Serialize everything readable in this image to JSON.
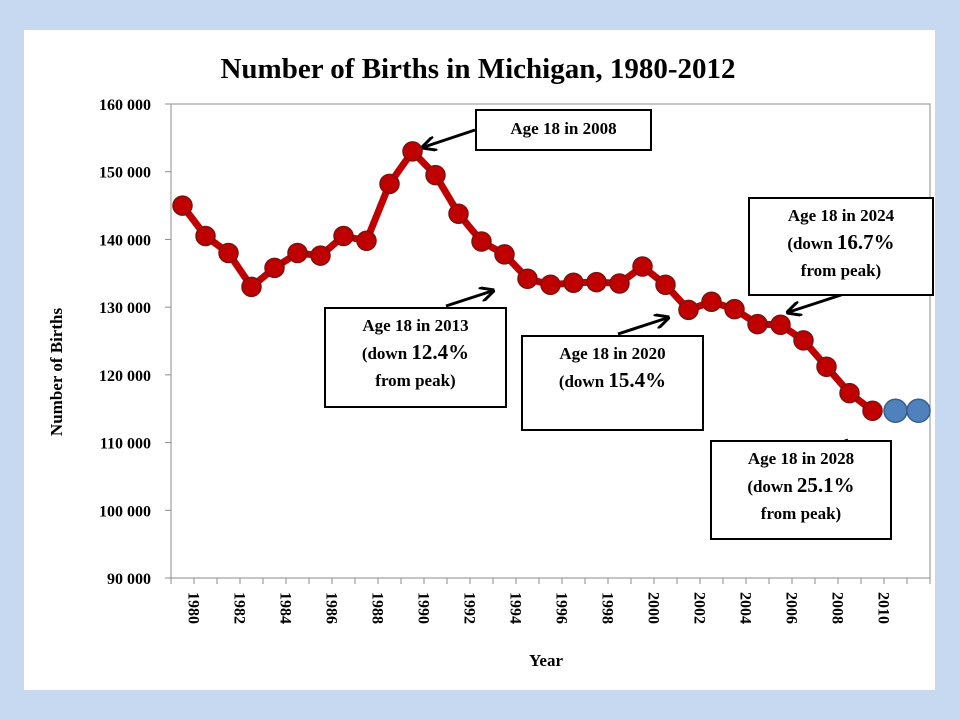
{
  "chart_data": {
    "type": "line",
    "title": "Number of Births in Michigan, 1980-2012",
    "xlabel": "Year",
    "ylabel": "Number of Births",
    "ylim": [
      90000,
      160000
    ],
    "yticks": [
      90000,
      100000,
      110000,
      120000,
      130000,
      140000,
      150000,
      160000
    ],
    "ytick_labels": [
      "90 000",
      "100 000",
      "110 000",
      "120 000",
      "130 000",
      "140 000",
      "150 000",
      "160 000"
    ],
    "xlim": [
      1980,
      2012
    ],
    "xtick_labels": [
      "1980",
      "1982",
      "1984",
      "1986",
      "1988",
      "1990",
      "1992",
      "1994",
      "1996",
      "1998",
      "2000",
      "2002",
      "2004",
      "2006",
      "2008",
      "2010"
    ],
    "grid": false,
    "series": [
      {
        "color": "#c00000",
        "x": [
          1980,
          1981,
          1982,
          1983,
          1984,
          1985,
          1986,
          1987,
          1988,
          1989,
          1990,
          1991,
          1992,
          1993,
          1994,
          1995,
          1996,
          1997,
          1998,
          1999,
          2000,
          2001,
          2002,
          2003,
          2004,
          2005,
          2006,
          2007,
          2008,
          2009,
          2010
        ],
        "values": [
          145000,
          140500,
          138000,
          133000,
          135800,
          138000,
          137600,
          140500,
          139800,
          148200,
          153000,
          149500,
          143800,
          139700,
          137800,
          134200,
          133300,
          133600,
          133700,
          133500,
          136000,
          133300,
          129600,
          130800,
          129700,
          127500,
          127400,
          125100,
          121200,
          117300,
          114700
        ]
      },
      {
        "color": "#4f81bd",
        "x": [
          2011,
          2012
        ],
        "values": [
          114700,
          114700
        ]
      }
    ]
  },
  "callouts": [
    {
      "line1": "Age 18 in 2008"
    },
    {
      "line1": "Age 18 in 2013",
      "line2_prefix": "(down ",
      "line2_pct": "12.4%",
      "line3": "from peak)"
    },
    {
      "line1": "Age 18 in 2020",
      "line2_prefix": "(down ",
      "line2_pct": "15.4%"
    },
    {
      "line1": "Age 18 in 2024",
      "line2_prefix": "(down ",
      "line2_pct": "16.7%",
      "line3": "from peak)"
    },
    {
      "line1": "Age 18 in 2028",
      "line2_prefix": "(down ",
      "line2_pct": "25.1%",
      "line3": "from peak)"
    }
  ]
}
